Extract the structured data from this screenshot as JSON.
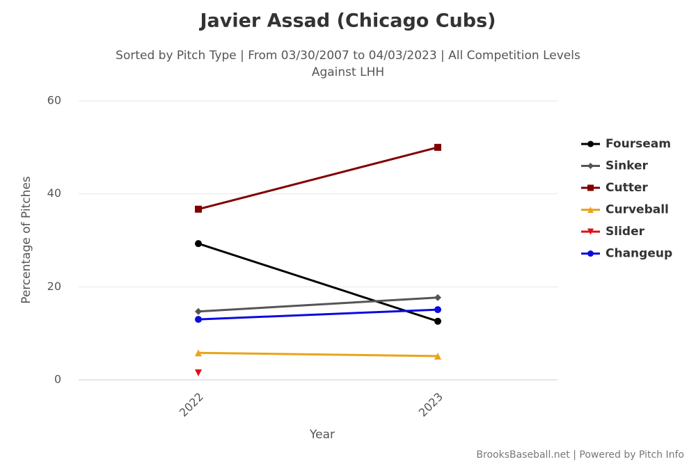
{
  "chart_data": {
    "type": "line",
    "title": "Javier Assad (Chicago Cubs)",
    "subtitle": [
      "Sorted by Pitch Type | From 03/30/2007 to 04/03/2023 | All Competition Levels",
      "Against LHH"
    ],
    "x_label": "Year",
    "y_label": "Percentage of Pitches",
    "credit": "BrooksBaseball.net | Powered by Pitch Info",
    "categories": [
      "2022",
      "2023"
    ],
    "series": [
      {
        "name": "Fourseam",
        "color": "#000000",
        "marker": "circle",
        "values": [
          29.3,
          12.6
        ]
      },
      {
        "name": "Sinker",
        "color": "#555555",
        "marker": "diamond",
        "values": [
          14.7,
          17.7
        ]
      },
      {
        "name": "Cutter",
        "color": "#800000",
        "marker": "square",
        "values": [
          36.7,
          50.0
        ]
      },
      {
        "name": "Curveball",
        "color": "#eaa31a",
        "marker": "triangle",
        "values": [
          5.8,
          5.1
        ]
      },
      {
        "name": "Slider",
        "color": "#e01010",
        "marker": "triangle-down",
        "values": [
          1.5,
          null
        ]
      },
      {
        "name": "Changeup",
        "color": "#0a0ae0",
        "marker": "circle",
        "values": [
          13.0,
          15.1
        ]
      }
    ],
    "ylim": [
      0,
      60
    ],
    "yticks": [
      0,
      20,
      40,
      60
    ],
    "grid": true,
    "legend": "right"
  }
}
